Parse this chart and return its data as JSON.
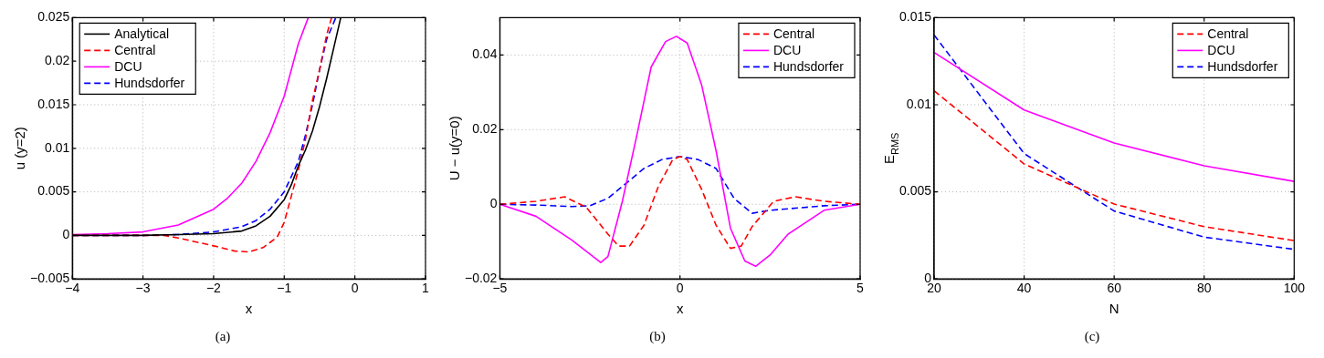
{
  "chart_data": [
    {
      "type": "line",
      "xlabel": "x",
      "ylabel": "u (y=2)",
      "annotations": [
        "(a)"
      ],
      "xlim": [
        -4,
        1
      ],
      "ylim": [
        -0.005,
        0.025
      ],
      "xticks": [
        {
          "value": -4,
          "label": "−4"
        },
        {
          "value": -3,
          "label": "−3"
        },
        {
          "value": -2,
          "label": "−2"
        },
        {
          "value": -1,
          "label": "−1"
        },
        0,
        1
      ],
      "yticks": [
        {
          "value": -0.005,
          "label": "−0.005"
        },
        0,
        0.005,
        0.01,
        0.015,
        0.02,
        0.025
      ],
      "grid": true,
      "legend": "top left",
      "marker": "none",
      "series": [
        {
          "name": "Analytical",
          "color": "#000000",
          "line_style": "solid",
          "x": [
            -4,
            -3,
            -2.5,
            -2,
            -1.6,
            -1.4,
            -1.2,
            -1,
            -0.9,
            -0.8,
            -0.7,
            -0.6,
            -0.5,
            -0.4,
            -0.3,
            -0.2
          ],
          "values": [
            0,
            0,
            0.0001,
            0.0002,
            0.0005,
            0.0011,
            0.0022,
            0.0041,
            0.0058,
            0.008,
            0.0098,
            0.012,
            0.0148,
            0.018,
            0.0215,
            0.025
          ]
        },
        {
          "name": "Central",
          "color": "#ff0000",
          "line_style": "dashed",
          "x": [
            -4,
            -3,
            -2.7,
            -2.5,
            -2,
            -1.7,
            -1.5,
            -1.3,
            -1.1,
            -1,
            -0.9,
            -0.8,
            -0.7,
            -0.6,
            -0.5,
            -0.4,
            -0.33
          ],
          "values": [
            0,
            0,
            0,
            -0.0003,
            -0.0012,
            -0.0018,
            -0.0019,
            -0.0014,
            -0.0002,
            0.0015,
            0.0045,
            0.0075,
            0.011,
            0.0155,
            0.019,
            0.023,
            0.025
          ]
        },
        {
          "name": "DCU",
          "color": "#ff00ff",
          "line_style": "solid",
          "x": [
            -4,
            -3.5,
            -3,
            -2.5,
            -2,
            -1.8,
            -1.6,
            -1.4,
            -1.2,
            -1,
            -0.9,
            -0.8,
            -0.66
          ],
          "values": [
            0.0001,
            0.0002,
            0.0004,
            0.0012,
            0.003,
            0.0043,
            0.006,
            0.0085,
            0.0118,
            0.016,
            0.019,
            0.022,
            0.025
          ]
        },
        {
          "name": "Hundsdorfer",
          "color": "#0000ff",
          "line_style": "dashed",
          "x": [
            -4,
            -3,
            -2.5,
            -2,
            -1.6,
            -1.4,
            -1.2,
            -1,
            -0.8,
            -0.7,
            -0.6,
            -0.5,
            -0.4,
            -0.27
          ],
          "values": [
            0,
            0,
            0.0001,
            0.0004,
            0.001,
            0.0017,
            0.003,
            0.005,
            0.0085,
            0.0115,
            0.015,
            0.019,
            0.0225,
            0.025
          ]
        }
      ]
    },
    {
      "type": "line",
      "xlabel": "x",
      "ylabel": "U − u(y=0)",
      "annotations": [
        "(b)"
      ],
      "xlim": [
        -5,
        5
      ],
      "ylim": [
        -0.02,
        0.05
      ],
      "xticks": [
        {
          "value": -5,
          "label": "−5"
        },
        0,
        5
      ],
      "yticks": [
        {
          "value": -0.02,
          "label": "−0.02"
        },
        0,
        0.02,
        0.04
      ],
      "grid": true,
      "legend": "top right",
      "marker": "none",
      "series": [
        {
          "name": "Central",
          "color": "#ff0000",
          "line_style": "dashed",
          "x": [
            -5,
            -4,
            -3.2,
            -2.6,
            -2,
            -1.7,
            -1.4,
            -1,
            -0.6,
            -0.2,
            0,
            0.2,
            0.6,
            1,
            1.4,
            1.7,
            2,
            2.6,
            3.2,
            4,
            5
          ],
          "values": [
            0,
            0.0008,
            0.002,
            -0.0008,
            -0.008,
            -0.0112,
            -0.0112,
            -0.0056,
            0.0048,
            0.012,
            0.0128,
            0.012,
            0.004,
            -0.0056,
            -0.0118,
            -0.0112,
            -0.006,
            0.0008,
            0.002,
            0.0008,
            0
          ]
        },
        {
          "name": "DCU",
          "color": "#ff00ff",
          "line_style": "solid",
          "x": [
            -5,
            -4,
            -3,
            -2.2,
            -2,
            -1.6,
            -1.2,
            -0.8,
            -0.4,
            -0.1,
            0.2,
            0.6,
            1,
            1.4,
            1.8,
            2.1,
            2.5,
            3,
            4,
            5
          ],
          "values": [
            0,
            -0.0032,
            -0.0096,
            -0.0156,
            -0.014,
            0.0008,
            0.0184,
            0.0368,
            0.0436,
            0.045,
            0.0432,
            0.032,
            0.0144,
            -0.0064,
            -0.0152,
            -0.0166,
            -0.0136,
            -0.008,
            -0.0016,
            0
          ]
        },
        {
          "name": "Hundsdorfer",
          "color": "#0000ff",
          "line_style": "dashed",
          "x": [
            -5,
            -4,
            -3,
            -2.5,
            -2,
            -1.5,
            -1,
            -0.5,
            0,
            0.5,
            1,
            1.5,
            2,
            2.5,
            3,
            4,
            5
          ],
          "values": [
            0,
            -0.0002,
            -0.0006,
            -0.0004,
            0.0016,
            0.0056,
            0.0096,
            0.012,
            0.0128,
            0.012,
            0.0096,
            0.0016,
            -0.0024,
            -0.0016,
            -0.0012,
            -0.0004,
            0
          ]
        }
      ]
    },
    {
      "type": "line",
      "xlabel": "N",
      "ylabel": "E$_{RMS}$",
      "annotations": [
        "(c)"
      ],
      "xlim": [
        20,
        100
      ],
      "ylim": [
        0,
        0.015
      ],
      "xticks": [
        20,
        40,
        60,
        80,
        100
      ],
      "yticks": [
        0,
        0.005,
        0.01,
        0.015
      ],
      "grid": true,
      "legend": "top right",
      "marker": "none",
      "series": [
        {
          "name": "Central",
          "color": "#ff0000",
          "line_style": "dashed",
          "x": [
            20,
            40,
            60,
            80,
            100
          ],
          "values": [
            0.0108,
            0.0066,
            0.0043,
            0.003,
            0.0022
          ]
        },
        {
          "name": "DCU",
          "color": "#ff00ff",
          "line_style": "solid",
          "x": [
            20,
            40,
            60,
            80,
            100
          ],
          "values": [
            0.013,
            0.0097,
            0.0078,
            0.0065,
            0.0056
          ]
        },
        {
          "name": "Hundsdorfer",
          "color": "#0000ff",
          "line_style": "dashed",
          "x": [
            20,
            40,
            60,
            80,
            100
          ],
          "values": [
            0.014,
            0.0072,
            0.0039,
            0.0024,
            0.0017
          ]
        }
      ]
    }
  ]
}
